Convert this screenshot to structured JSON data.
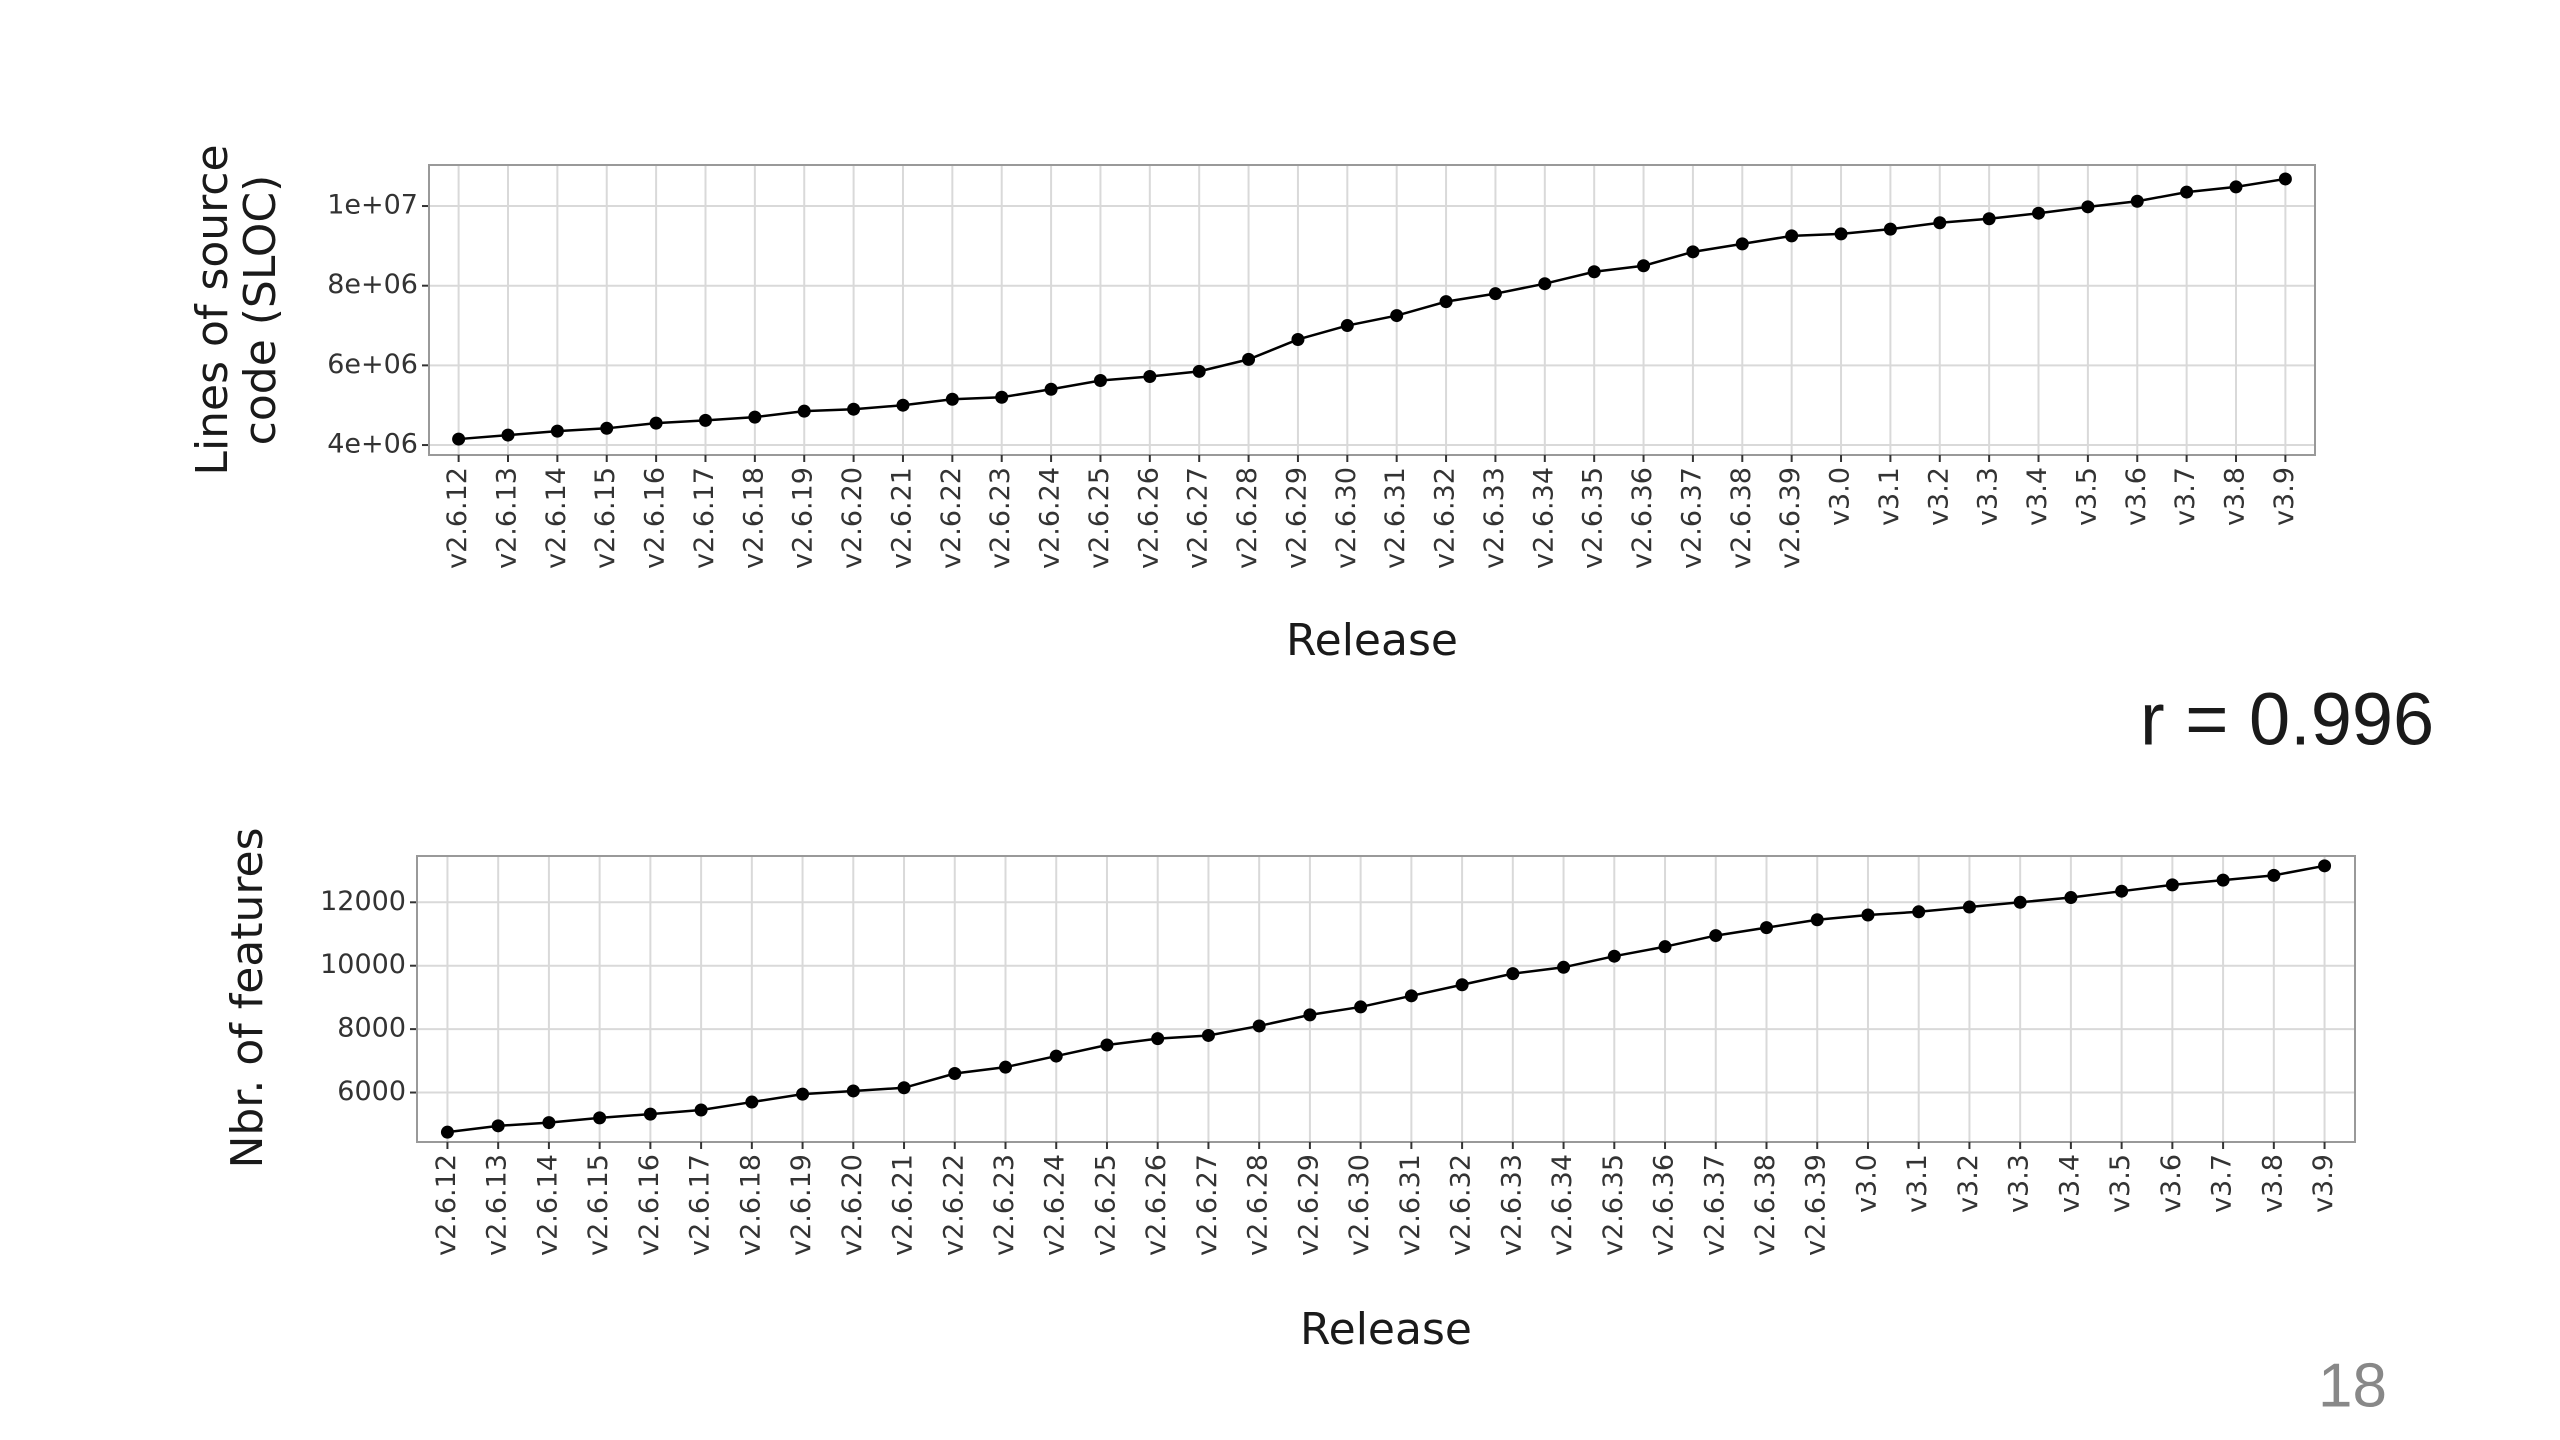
{
  "chart_data": [
    {
      "type": "line",
      "ylabel": [
        "Lines of source",
        "code (SLOC)"
      ],
      "xlabel": "Release",
      "categories": [
        "v2.6.12",
        "v2.6.13",
        "v2.6.14",
        "v2.6.15",
        "v2.6.16",
        "v2.6.17",
        "v2.6.18",
        "v2.6.19",
        "v2.6.20",
        "v2.6.21",
        "v2.6.22",
        "v2.6.23",
        "v2.6.24",
        "v2.6.25",
        "v2.6.26",
        "v2.6.27",
        "v2.6.28",
        "v2.6.29",
        "v2.6.30",
        "v2.6.31",
        "v2.6.32",
        "v2.6.33",
        "v2.6.34",
        "v2.6.35",
        "v2.6.36",
        "v2.6.37",
        "v2.6.38",
        "v2.6.39",
        "v3.0",
        "v3.1",
        "v3.2",
        "v3.3",
        "v3.4",
        "v3.5",
        "v3.6",
        "v3.7",
        "v3.8",
        "v3.9"
      ],
      "values": [
        4150000,
        4250000,
        4350000,
        4420000,
        4550000,
        4620000,
        4700000,
        4850000,
        4900000,
        5000000,
        5150000,
        5200000,
        5400000,
        5620000,
        5720000,
        5850000,
        6150000,
        6650000,
        7000000,
        7250000,
        7600000,
        7800000,
        8050000,
        8350000,
        8500000,
        8850000,
        9050000,
        9250000,
        9300000,
        9420000,
        9580000,
        9680000,
        9820000,
        9980000,
        10120000,
        10350000,
        10480000,
        10680000
      ],
      "color": "#000000",
      "ylim": [
        3750000,
        11030000
      ],
      "yticks": [
        {
          "value": 4000000,
          "label": "4e+06"
        },
        {
          "value": 6000000,
          "label": "6e+06"
        },
        {
          "value": 8000000,
          "label": "8e+06"
        },
        {
          "value": 10000000,
          "label": "1e+07"
        }
      ],
      "grid": true
    },
    {
      "type": "line",
      "ylabel": [
        "Nbr. of features"
      ],
      "xlabel": "Release",
      "categories": [
        "v2.6.12",
        "v2.6.13",
        "v2.6.14",
        "v2.6.15",
        "v2.6.16",
        "v2.6.17",
        "v2.6.18",
        "v2.6.19",
        "v2.6.20",
        "v2.6.21",
        "v2.6.22",
        "v2.6.23",
        "v2.6.24",
        "v2.6.25",
        "v2.6.26",
        "v2.6.27",
        "v2.6.28",
        "v2.6.29",
        "v2.6.30",
        "v2.6.31",
        "v2.6.32",
        "v2.6.33",
        "v2.6.34",
        "v2.6.35",
        "v2.6.36",
        "v2.6.37",
        "v2.6.38",
        "v2.6.39",
        "v3.0",
        "v3.1",
        "v3.2",
        "v3.3",
        "v3.4",
        "v3.5",
        "v3.6",
        "v3.7",
        "v3.8",
        "v3.9"
      ],
      "values": [
        4750,
        4950,
        5050,
        5200,
        5320,
        5450,
        5700,
        5950,
        6050,
        6150,
        6600,
        6800,
        7150,
        7500,
        7700,
        7800,
        8100,
        8450,
        8700,
        9050,
        9400,
        9750,
        9950,
        10300,
        10600,
        10950,
        11200,
        11450,
        11600,
        11700,
        11850,
        12000,
        12150,
        12350,
        12550,
        12700,
        12850,
        13150
      ],
      "color": "#000000",
      "ylim": [
        4440,
        13460
      ],
      "yticks": [
        6000,
        8000,
        10000,
        12000
      ],
      "grid": true
    }
  ],
  "annotation": "r = 0.996",
  "page_number": "18"
}
